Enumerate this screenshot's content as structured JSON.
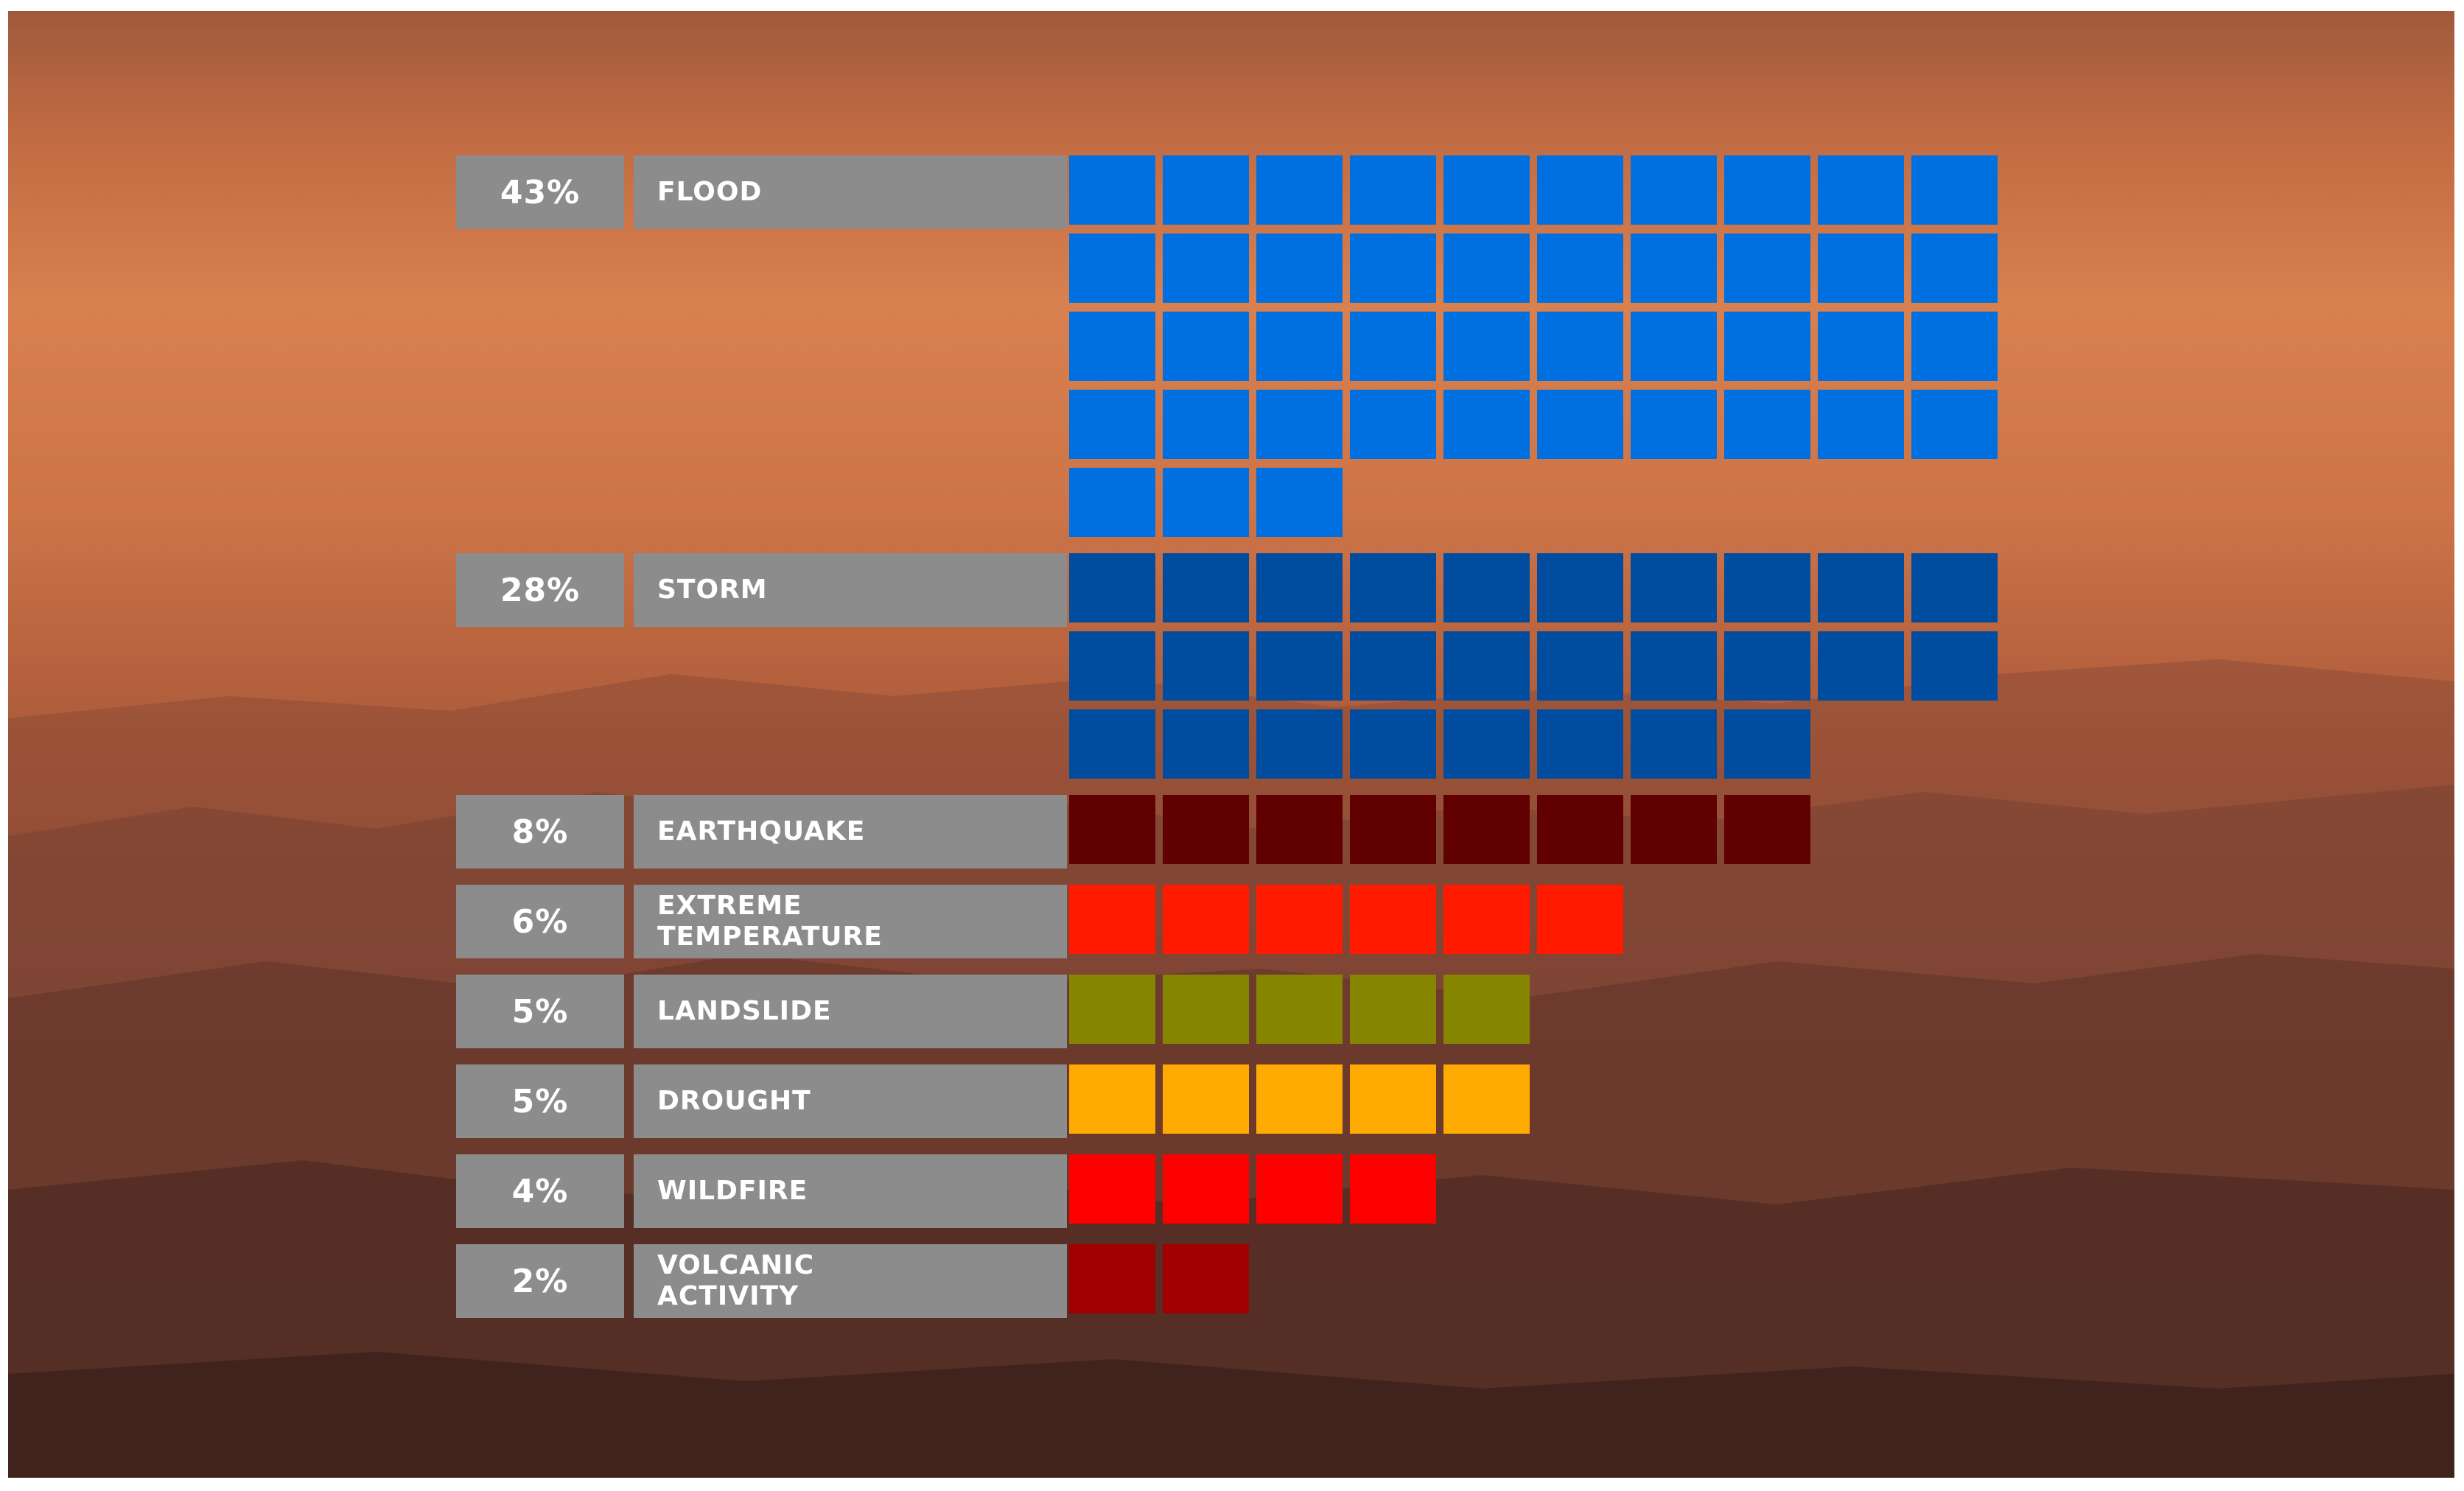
{
  "chart_data": {
    "type": "waffle",
    "unit": "%",
    "cells_per_row": 10,
    "rows": [
      {
        "percent_label": "43%",
        "category": "FLOOD",
        "value": 43,
        "color": "#0070e0"
      },
      {
        "percent_label": "28%",
        "category": "STORM",
        "value": 28,
        "color": "#004da0"
      },
      {
        "percent_label": "8%",
        "category": "EARTHQUAKE",
        "value": 8,
        "color": "#600000"
      },
      {
        "percent_label": "6%",
        "category": "EXTREME\nTEMPERATURE",
        "value": 6,
        "color": "#ff1a00"
      },
      {
        "percent_label": "5%",
        "category": "LANDSLIDE",
        "value": 5,
        "color": "#858500"
      },
      {
        "percent_label": "5%",
        "category": "DROUGHT",
        "value": 5,
        "color": "#ffaa00"
      },
      {
        "percent_label": "4%",
        "category": "WILDFIRE",
        "value": 4,
        "color": "#ff0000"
      },
      {
        "percent_label": "2%",
        "category": "VOLCANIC\nACTIVITY",
        "value": 2,
        "color": "#a00000"
      }
    ]
  },
  "colors": {
    "label_background": "#8c8c8c",
    "label_text": "#ffffff"
  }
}
